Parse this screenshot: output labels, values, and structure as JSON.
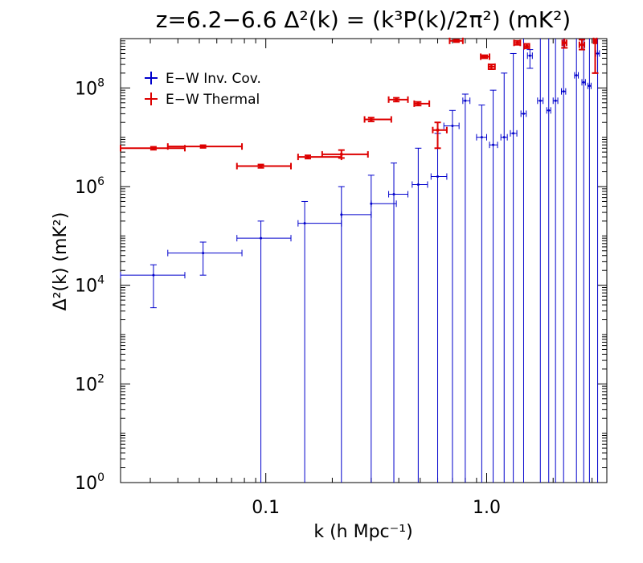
{
  "chart_data": {
    "type": "scatter",
    "title": "z=6.2−6.6 Δ²(k) = (k³P(k)/2π²) (mK²)",
    "xlabel": "k (h Mpc⁻¹)",
    "ylabel": "Δ²(k) (mK²)",
    "xscale": "log",
    "yscale": "log",
    "xlim": [
      0.022,
      3.5
    ],
    "ylim": [
      1,
      1000000000.0
    ],
    "x_tick_labels": [
      {
        "value": 0.1,
        "label": "0.1"
      },
      {
        "value": 1.0,
        "label": "1.0"
      }
    ],
    "y_tick_labels": [
      {
        "value": 1,
        "base": "10",
        "exp": "0"
      },
      {
        "value": 100,
        "base": "10",
        "exp": "2"
      },
      {
        "value": 10000,
        "base": "10",
        "exp": "4"
      },
      {
        "value": 1000000,
        "base": "10",
        "exp": "6"
      },
      {
        "value": 100000000,
        "base": "10",
        "exp": "8"
      }
    ],
    "legend_position": "top-left",
    "series": [
      {
        "name": "E−W Inv. Cov.",
        "color": "#0000cc",
        "points": [
          {
            "x": 0.031,
            "y": 16000,
            "xlo": 0.022,
            "xhi": 0.043,
            "ylo": 3500,
            "yhi": 26000
          },
          {
            "x": 0.052,
            "y": 45000,
            "xlo": 0.036,
            "xhi": 0.078,
            "ylo": 16000,
            "yhi": 75000
          },
          {
            "x": 0.095,
            "y": 90000,
            "xlo": 0.074,
            "xhi": 0.13,
            "ylo": 1,
            "yhi": 200000
          },
          {
            "x": 0.15,
            "y": 180000,
            "xlo": 0.14,
            "xhi": 0.22,
            "ylo": 1,
            "yhi": 500000
          },
          {
            "x": 0.22,
            "y": 270000,
            "xlo": 0.22,
            "xhi": 0.3,
            "ylo": 1,
            "yhi": 1000000
          },
          {
            "x": 0.3,
            "y": 450000,
            "xlo": 0.3,
            "xhi": 0.39,
            "ylo": 1,
            "yhi": 1700000
          },
          {
            "x": 0.38,
            "y": 700000,
            "xlo": 0.36,
            "xhi": 0.44,
            "ylo": 1,
            "yhi": 3000000
          },
          {
            "x": 0.49,
            "y": 1100000,
            "xlo": 0.46,
            "xhi": 0.54,
            "ylo": 1,
            "yhi": 6000000
          },
          {
            "x": 0.6,
            "y": 1600000,
            "xlo": 0.56,
            "xhi": 0.66,
            "ylo": 1,
            "yhi": 12000000
          },
          {
            "x": 0.7,
            "y": 17000000,
            "xlo": 0.64,
            "xhi": 0.75,
            "ylo": 1,
            "yhi": 35000000
          },
          {
            "x": 0.8,
            "y": 55000000,
            "xlo": 0.78,
            "xhi": 0.84,
            "ylo": 1,
            "yhi": 75000000
          },
          {
            "x": 0.95,
            "y": 10000000,
            "xlo": 0.9,
            "xhi": 1.0,
            "ylo": 1,
            "yhi": 45000000
          },
          {
            "x": 1.07,
            "y": 7000000,
            "xlo": 1.03,
            "xhi": 1.12,
            "ylo": 1,
            "yhi": 90000000
          },
          {
            "x": 1.2,
            "y": 10000000,
            "xlo": 1.16,
            "xhi": 1.24,
            "ylo": 1,
            "yhi": 200000000
          },
          {
            "x": 1.32,
            "y": 12000000,
            "xlo": 1.28,
            "xhi": 1.37,
            "ylo": 1,
            "yhi": 500000000
          },
          {
            "x": 1.47,
            "y": 30000000,
            "xlo": 1.43,
            "xhi": 1.51,
            "ylo": 1,
            "yhi": 1000000000
          },
          {
            "x": 1.57,
            "y": 450000000,
            "xlo": 1.53,
            "xhi": 1.61,
            "ylo": 250000000,
            "yhi": 600000000
          },
          {
            "x": 1.75,
            "y": 55000000,
            "xlo": 1.7,
            "xhi": 1.8,
            "ylo": 1,
            "yhi": 1000000000
          },
          {
            "x": 1.91,
            "y": 35000000,
            "xlo": 1.87,
            "xhi": 1.95,
            "ylo": 1,
            "yhi": 1000000000
          },
          {
            "x": 2.05,
            "y": 55000000,
            "xlo": 2.0,
            "xhi": 2.1,
            "ylo": 1,
            "yhi": 1000000000
          },
          {
            "x": 2.23,
            "y": 85000000,
            "xlo": 2.18,
            "xhi": 2.28,
            "ylo": 1,
            "yhi": 1000000000
          },
          {
            "x": 2.55,
            "y": 180000000,
            "xlo": 2.5,
            "xhi": 2.6,
            "ylo": 1,
            "yhi": 1000000000
          },
          {
            "x": 2.75,
            "y": 130000000,
            "xlo": 2.7,
            "xhi": 2.8,
            "ylo": 1,
            "yhi": 1000000000
          },
          {
            "x": 2.92,
            "y": 110000000,
            "xlo": 2.87,
            "xhi": 2.97,
            "ylo": 1,
            "yhi": 1000000000
          },
          {
            "x": 3.18,
            "y": 500000000,
            "xlo": 3.12,
            "xhi": 3.24,
            "ylo": 1,
            "yhi": 1000000000
          }
        ]
      },
      {
        "name": "E−W Thermal",
        "color": "#dd0000",
        "points": [
          {
            "x": 0.031,
            "y": 6000000,
            "xlo": 0.022,
            "xhi": 0.043,
            "ylo": 5600000,
            "yhi": 6400000
          },
          {
            "x": 0.052,
            "y": 6500000,
            "xlo": 0.036,
            "xhi": 0.078,
            "ylo": 6100000,
            "yhi": 6900000
          },
          {
            "x": 0.095,
            "y": 2600000,
            "xlo": 0.074,
            "xhi": 0.13,
            "ylo": 2400000,
            "yhi": 2800000
          },
          {
            "x": 0.155,
            "y": 4000000,
            "xlo": 0.14,
            "xhi": 0.22,
            "ylo": 3700000,
            "yhi": 4300000
          },
          {
            "x": 0.22,
            "y": 4500000,
            "xlo": 0.18,
            "xhi": 0.29,
            "ylo": 3800000,
            "yhi": 5500000
          },
          {
            "x": 0.3,
            "y": 23000000,
            "xlo": 0.28,
            "xhi": 0.37,
            "ylo": 21000000,
            "yhi": 25000000
          },
          {
            "x": 0.39,
            "y": 58000000,
            "xlo": 0.36,
            "xhi": 0.44,
            "ylo": 53000000,
            "yhi": 63000000
          },
          {
            "x": 0.49,
            "y": 48000000,
            "xlo": 0.47,
            "xhi": 0.55,
            "ylo": 44000000,
            "yhi": 52000000
          },
          {
            "x": 0.6,
            "y": 14000000,
            "xlo": 0.57,
            "xhi": 0.66,
            "ylo": 6000000,
            "yhi": 20000000
          },
          {
            "x": 0.73,
            "y": 900000000,
            "xlo": 0.68,
            "xhi": 0.78,
            "ylo": 850000000,
            "yhi": 950000000
          },
          {
            "x": 0.98,
            "y": 430000000,
            "xlo": 0.94,
            "xhi": 1.03,
            "ylo": 400000000,
            "yhi": 460000000
          },
          {
            "x": 1.05,
            "y": 270000000,
            "xlo": 1.02,
            "xhi": 1.09,
            "ylo": 240000000,
            "yhi": 300000000
          },
          {
            "x": 1.38,
            "y": 820000000,
            "xlo": 1.33,
            "xhi": 1.42,
            "ylo": 750000000,
            "yhi": 900000000
          },
          {
            "x": 1.52,
            "y": 700000000,
            "xlo": 1.48,
            "xhi": 1.56,
            "ylo": 640000000,
            "yhi": 780000000
          },
          {
            "x": 2.25,
            "y": 820000000,
            "xlo": 2.2,
            "xhi": 2.3,
            "ylo": 650000000,
            "yhi": 1000000000
          },
          {
            "x": 2.7,
            "y": 750000000,
            "xlo": 2.63,
            "xhi": 2.77,
            "ylo": 600000000,
            "yhi": 950000000
          },
          {
            "x": 3.1,
            "y": 900000000,
            "xlo": 3.05,
            "xhi": 3.15,
            "ylo": 200000000,
            "yhi": 1000000000
          }
        ]
      }
    ]
  }
}
